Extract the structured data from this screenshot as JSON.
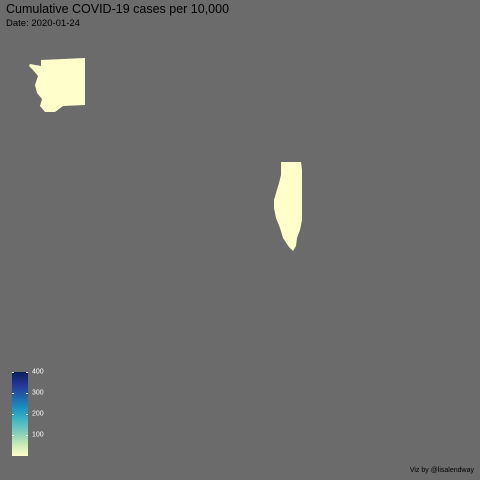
{
  "title": "Cumulative COVID-19 cases per 10,000",
  "subtitle": "Date: 2020-01-24",
  "caption": "Viz by @lisalendway",
  "background_color": "#6b6b6b",
  "states": [
    {
      "name": "Washington",
      "value": 0.0,
      "fill": "#ffffcc"
    },
    {
      "name": "Illinois",
      "value": 0.0,
      "fill": "#ffffcc"
    }
  ],
  "legend": {
    "min": 0,
    "max": 400,
    "ticks": [
      {
        "value": 100,
        "label": "100"
      },
      {
        "value": 200,
        "label": "200"
      },
      {
        "value": 300,
        "label": "300"
      },
      {
        "value": 400,
        "label": "400"
      }
    ],
    "colors": [
      "#ffffcc",
      "#c7e9b4",
      "#7fcdbb",
      "#41b6c4",
      "#1d91c0",
      "#225ea8",
      "#253494",
      "#081d58"
    ]
  }
}
